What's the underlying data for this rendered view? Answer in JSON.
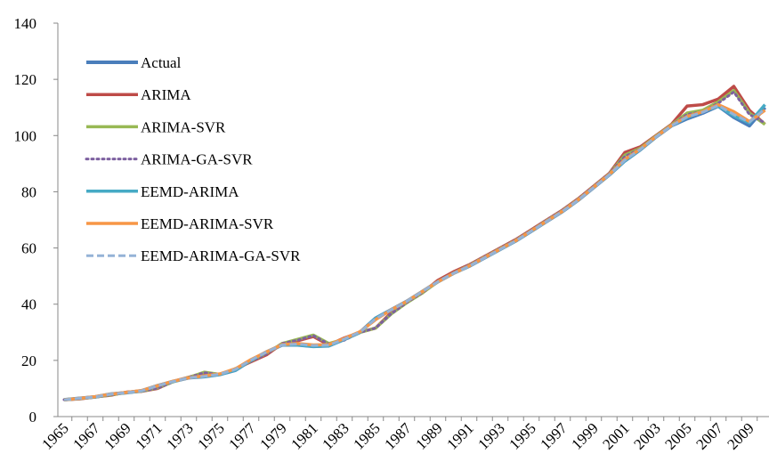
{
  "chart_data": {
    "type": "line",
    "categories": [
      "1965",
      null,
      "1967",
      null,
      "1969",
      null,
      "1971",
      null,
      "1973",
      null,
      "1975",
      null,
      "1977",
      null,
      "1979",
      null,
      "1981",
      null,
      "1983",
      null,
      "1985",
      null,
      "1987",
      null,
      "1989",
      null,
      "1991",
      null,
      "1993",
      null,
      "1995",
      null,
      "1997",
      null,
      "1999",
      null,
      "2001",
      null,
      "2003",
      null,
      "2005",
      null,
      "2007",
      null,
      "2009",
      null
    ],
    "ylim": [
      0,
      140
    ],
    "yticks": [
      0,
      20,
      40,
      60,
      80,
      100,
      120,
      140
    ],
    "grid": false,
    "legend": "upper left",
    "series": [
      {
        "name": "Actual",
        "color": "#4a7ebb",
        "dash": "solid",
        "values": [
          6,
          6.5,
          7,
          8,
          8.5,
          9.2,
          11,
          12.5,
          13.8,
          14.2,
          15,
          16.5,
          20,
          23,
          25.5,
          25.5,
          25,
          25.2,
          27.5,
          30,
          35,
          38,
          41,
          44.5,
          48,
          51,
          53.5,
          56.5,
          59.5,
          62.5,
          66,
          69.5,
          73,
          77,
          81.5,
          86,
          91,
          95,
          99.5,
          103.5,
          106,
          108,
          110.5,
          106.5,
          103.5,
          110
        ]
      },
      {
        "name": "ARIMA",
        "color": "#be4b48",
        "dash": "solid",
        "values": [
          6,
          6.3,
          7,
          7.6,
          8.7,
          9,
          10,
          12.5,
          14,
          15.5,
          15,
          17,
          19.5,
          22,
          26,
          27,
          28.5,
          25.5,
          28,
          30,
          31.5,
          37,
          41,
          44,
          48.5,
          51.5,
          54,
          57,
          60,
          63,
          66.5,
          70,
          73.5,
          77.5,
          82,
          86.5,
          94,
          96,
          100,
          104,
          110.5,
          111,
          113,
          117.5,
          109,
          104
        ]
      },
      {
        "name": "ARIMA-SVR",
        "color": "#98b954",
        "dash": "solid",
        "values": [
          6,
          6.4,
          7,
          7.7,
          8.6,
          9.1,
          10.2,
          12.4,
          13.9,
          15.8,
          15,
          17,
          19.8,
          22.5,
          26,
          27.5,
          29,
          26,
          27.5,
          30,
          31.5,
          36.5,
          40.5,
          44,
          48,
          51,
          53.8,
          56.8,
          59.8,
          62.8,
          66.2,
          69.8,
          73.3,
          77.3,
          81.8,
          86.3,
          93,
          95.5,
          99.8,
          103.8,
          108,
          109,
          112,
          116,
          108,
          104
        ]
      },
      {
        "name": "ARIMA-GA-SVR",
        "color": "#7d60a0",
        "dash": "dotted",
        "values": [
          6,
          6.4,
          7,
          7.7,
          8.6,
          9.1,
          10.1,
          12.4,
          13.9,
          15.6,
          15,
          17,
          19.7,
          22.3,
          26,
          27.2,
          28.8,
          25.8,
          27.2,
          30,
          31.5,
          36.6,
          40.6,
          44.1,
          48.1,
          51.1,
          53.9,
          56.9,
          59.9,
          62.9,
          66.3,
          69.9,
          73.4,
          77.4,
          81.9,
          86.4,
          92.5,
          95.3,
          99.7,
          103.7,
          107.5,
          108.5,
          111.5,
          115.5,
          107.5,
          104.5
        ]
      },
      {
        "name": "EEMD-ARIMA",
        "color": "#46aac5",
        "dash": "solid",
        "values": [
          6,
          6.5,
          7,
          8,
          8.5,
          9.2,
          11,
          12.5,
          13.8,
          14.2,
          15,
          16.5,
          20,
          23,
          25.5,
          25.5,
          25,
          25.2,
          27.5,
          30,
          35,
          38,
          41,
          44.5,
          48,
          51,
          53.5,
          56.5,
          59.5,
          62.5,
          66,
          69.5,
          73,
          77,
          81.5,
          86,
          91,
          95,
          99.5,
          103.5,
          106.5,
          108.5,
          110.5,
          107,
          104.5,
          111
        ]
      },
      {
        "name": "EEMD-ARIMA-SVR",
        "color": "#f79646",
        "dash": "solid",
        "values": [
          6,
          6.5,
          7.1,
          8,
          8.6,
          9.3,
          11,
          12.6,
          13.8,
          14.5,
          15.2,
          17,
          20.3,
          23,
          25.6,
          26,
          25.5,
          25.6,
          27.8,
          30.2,
          34.5,
          38,
          41,
          44.5,
          48,
          51,
          53.6,
          56.6,
          59.6,
          62.6,
          66.1,
          69.6,
          73.1,
          77.1,
          81.6,
          86.1,
          91.5,
          95.2,
          99.6,
          103.6,
          106.8,
          108.5,
          111,
          108.5,
          105,
          109
        ]
      },
      {
        "name": "EEMD-ARIMA-GA-SVR",
        "color": "#95b3d7",
        "dash": "dashed",
        "values": [
          6,
          6.5,
          7,
          8,
          8.5,
          9.2,
          11,
          12.5,
          13.8,
          14.3,
          15.1,
          16.8,
          20.1,
          23,
          25.5,
          25.8,
          25.3,
          25.4,
          27.6,
          30.1,
          34.8,
          38,
          41,
          44.5,
          48,
          51,
          53.5,
          56.5,
          59.5,
          62.5,
          66,
          69.5,
          73,
          77,
          81.5,
          86,
          91.2,
          95.1,
          99.5,
          103.5,
          106.6,
          108.3,
          110.7,
          107.5,
          104.8,
          109.5
        ]
      }
    ]
  }
}
